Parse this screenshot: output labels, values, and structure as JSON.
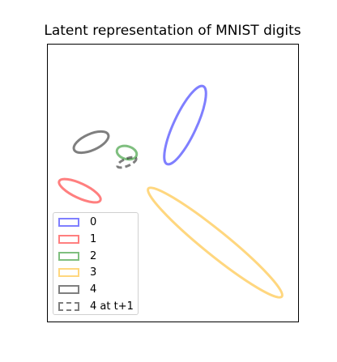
{
  "chart_data": {
    "type": "scatter",
    "title": "Latent representation of MNIST digits",
    "xlabel": "",
    "ylabel": "",
    "xlim": [
      0,
      310
    ],
    "ylim": [
      0,
      343
    ],
    "grid": false,
    "legend_placement": "lower-left",
    "series": [
      {
        "name": "0",
        "color": "#0000ff",
        "linestyle": "solid",
        "ellipse": {
          "center": [
            170,
            243
          ],
          "width": 106,
          "height": 28,
          "angle": -65
        }
      },
      {
        "name": "1",
        "color": "#ff0000",
        "linestyle": "solid",
        "ellipse": {
          "center": [
            40,
            162
          ],
          "width": 56,
          "height": 18,
          "angle": 25
        }
      },
      {
        "name": "2",
        "color": "#008000",
        "linestyle": "solid",
        "ellipse": {
          "center": [
            98,
            209
          ],
          "width": 25,
          "height": 16,
          "angle": 15
        }
      },
      {
        "name": "3",
        "color": "#ffb000",
        "linestyle": "solid",
        "ellipse": {
          "center": [
            207,
            98
          ],
          "width": 212,
          "height": 30,
          "angle": 39
        }
      },
      {
        "name": "4",
        "color": "#000000",
        "linestyle": "solid",
        "ellipse": {
          "center": [
            54,
            222
          ],
          "width": 46,
          "height": 20,
          "angle": -24
        }
      },
      {
        "name": "4 at t+1",
        "color": "#000000",
        "linestyle": "dashed",
        "ellipse": {
          "center": [
            98,
            197
          ],
          "width": 25,
          "height": 9,
          "angle": -23
        }
      }
    ]
  }
}
